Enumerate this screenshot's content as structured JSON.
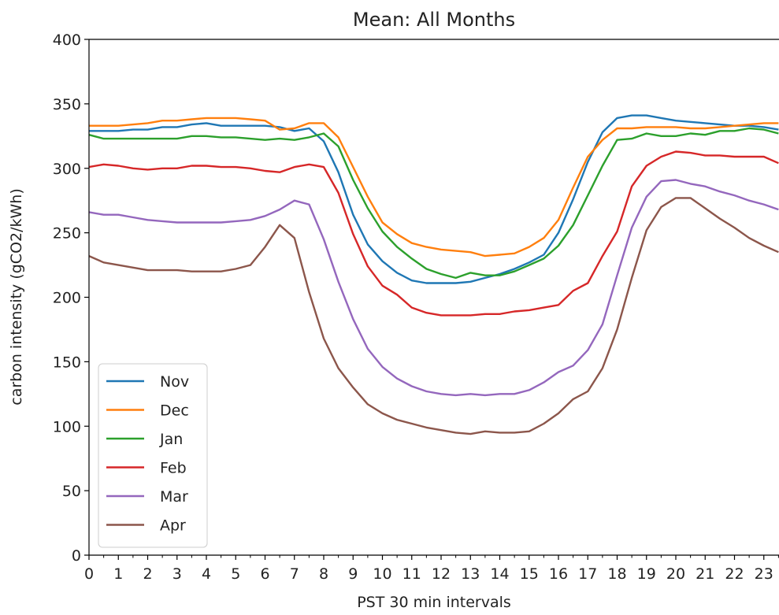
{
  "chart_data": {
    "type": "line",
    "title": "Mean: All Months",
    "xlabel": "PST 30 min intervals",
    "ylabel": "carbon intensity (gCO2/kWh)",
    "xlim": [
      0,
      23.5
    ],
    "ylim": [
      0,
      400
    ],
    "x_ticks": [
      "0",
      "1",
      "2",
      "3",
      "4",
      "5",
      "6",
      "7",
      "8",
      "9",
      "10",
      "11",
      "12",
      "13",
      "14",
      "15",
      "16",
      "17",
      "18",
      "19",
      "20",
      "21",
      "22",
      "23"
    ],
    "y_ticks": [
      "0",
      "50",
      "100",
      "150",
      "200",
      "250",
      "300",
      "350",
      "400"
    ],
    "legend_position": "lower-left",
    "grid": false,
    "x": [
      0,
      0.5,
      1,
      1.5,
      2,
      2.5,
      3,
      3.5,
      4,
      4.5,
      5,
      5.5,
      6,
      6.5,
      7,
      7.5,
      8,
      8.5,
      9,
      9.5,
      10,
      10.5,
      11,
      11.5,
      12,
      12.5,
      13,
      13.5,
      14,
      14.5,
      15,
      15.5,
      16,
      16.5,
      17,
      17.5,
      18,
      18.5,
      19,
      19.5,
      20,
      20.5,
      21,
      21.5,
      22,
      22.5,
      23,
      23.5
    ],
    "series": [
      {
        "name": "Nov",
        "color": "#1f77b4",
        "values": [
          329,
          329,
          329,
          330,
          330,
          332,
          332,
          334,
          335,
          333,
          333,
          333,
          333,
          332,
          329,
          331,
          321,
          297,
          264,
          241,
          228,
          219,
          213,
          211,
          211,
          211,
          212,
          215,
          218,
          222,
          227,
          233,
          250,
          276,
          305,
          328,
          339,
          341,
          341,
          339,
          337,
          336,
          335,
          334,
          333,
          333,
          332,
          330
        ]
      },
      {
        "name": "Dec",
        "color": "#ff7f0e",
        "values": [
          333,
          333,
          333,
          334,
          335,
          337,
          337,
          338,
          339,
          339,
          339,
          338,
          337,
          330,
          331,
          335,
          335,
          324,
          301,
          278,
          258,
          249,
          242,
          239,
          237,
          236,
          235,
          232,
          233,
          234,
          239,
          246,
          260,
          285,
          309,
          322,
          331,
          331,
          332,
          332,
          332,
          331,
          331,
          332,
          333,
          334,
          335,
          335
        ]
      },
      {
        "name": "Jan",
        "color": "#2ca02c",
        "values": [
          326,
          323,
          323,
          323,
          323,
          323,
          323,
          325,
          325,
          324,
          324,
          323,
          322,
          323,
          322,
          324,
          327,
          317,
          291,
          269,
          251,
          239,
          230,
          222,
          218,
          215,
          219,
          217,
          217,
          220,
          225,
          230,
          240,
          256,
          279,
          302,
          322,
          323,
          327,
          325,
          325,
          327,
          326,
          329,
          329,
          331,
          330,
          327
        ]
      },
      {
        "name": "Feb",
        "color": "#d62728",
        "values": [
          301,
          303,
          302,
          300,
          299,
          300,
          300,
          302,
          302,
          301,
          301,
          300,
          298,
          297,
          301,
          303,
          301,
          281,
          249,
          224,
          209,
          202,
          192,
          188,
          186,
          186,
          186,
          187,
          187,
          189,
          190,
          192,
          194,
          205,
          211,
          232,
          251,
          286,
          302,
          309,
          313,
          312,
          310,
          310,
          309,
          309,
          309,
          304
        ]
      },
      {
        "name": "Mar",
        "color": "#9467bd",
        "values": [
          266,
          264,
          264,
          262,
          260,
          259,
          258,
          258,
          258,
          258,
          259,
          260,
          263,
          268,
          275,
          272,
          245,
          212,
          183,
          160,
          146,
          137,
          131,
          127,
          125,
          124,
          125,
          124,
          125,
          125,
          128,
          134,
          142,
          147,
          159,
          179,
          217,
          254,
          278,
          290,
          291,
          288,
          286,
          282,
          279,
          275,
          272,
          268
        ]
      },
      {
        "name": "Apr",
        "color": "#8c564b",
        "values": [
          232,
          227,
          225,
          223,
          221,
          221,
          221,
          220,
          220,
          220,
          222,
          225,
          239,
          256,
          246,
          204,
          168,
          145,
          130,
          117,
          110,
          105,
          102,
          99,
          97,
          95,
          94,
          96,
          95,
          95,
          96,
          102,
          110,
          121,
          127,
          145,
          175,
          215,
          252,
          270,
          277,
          277,
          269,
          261,
          254,
          246,
          240,
          235
        ]
      }
    ]
  }
}
